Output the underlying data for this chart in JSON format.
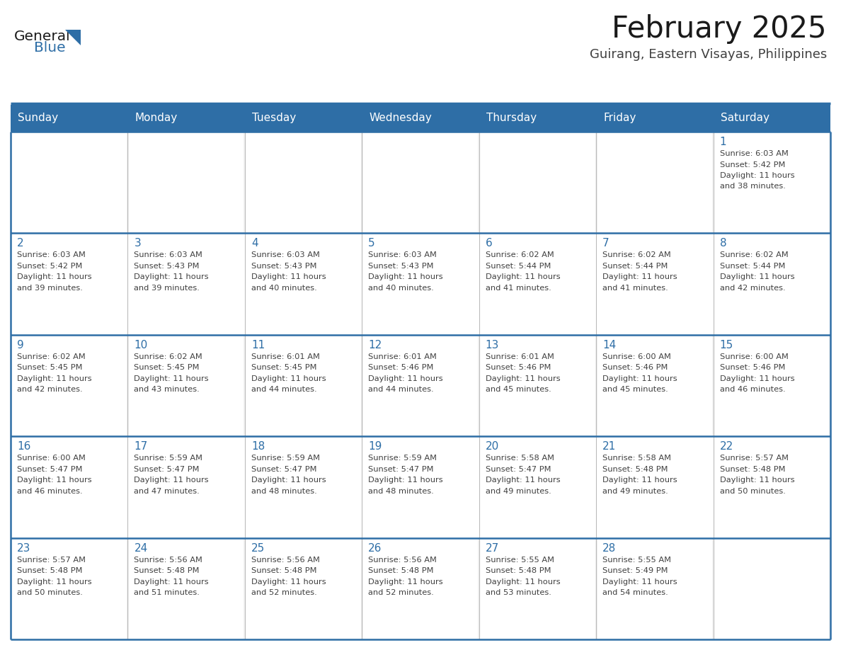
{
  "title": "February 2025",
  "subtitle": "Guirang, Eastern Visayas, Philippines",
  "header_bg": "#2E6EA6",
  "header_text": "#FFFFFF",
  "row_bg_odd": "#F2F2F2",
  "row_bg_even": "#FFFFFF",
  "day_text_color": "#2E6EA6",
  "content_text_color": "#404040",
  "grid_line_color": "#2E6EA6",
  "days_of_week": [
    "Sunday",
    "Monday",
    "Tuesday",
    "Wednesday",
    "Thursday",
    "Friday",
    "Saturday"
  ],
  "calendar_data": [
    [
      null,
      null,
      null,
      null,
      null,
      null,
      {
        "day": 1,
        "sunrise": "6:03 AM",
        "sunset": "5:42 PM",
        "daylight": "11 hours and 38 minutes."
      }
    ],
    [
      {
        "day": 2,
        "sunrise": "6:03 AM",
        "sunset": "5:42 PM",
        "daylight": "11 hours and 39 minutes."
      },
      {
        "day": 3,
        "sunrise": "6:03 AM",
        "sunset": "5:43 PM",
        "daylight": "11 hours and 39 minutes."
      },
      {
        "day": 4,
        "sunrise": "6:03 AM",
        "sunset": "5:43 PM",
        "daylight": "11 hours and 40 minutes."
      },
      {
        "day": 5,
        "sunrise": "6:03 AM",
        "sunset": "5:43 PM",
        "daylight": "11 hours and 40 minutes."
      },
      {
        "day": 6,
        "sunrise": "6:02 AM",
        "sunset": "5:44 PM",
        "daylight": "11 hours and 41 minutes."
      },
      {
        "day": 7,
        "sunrise": "6:02 AM",
        "sunset": "5:44 PM",
        "daylight": "11 hours and 41 minutes."
      },
      {
        "day": 8,
        "sunrise": "6:02 AM",
        "sunset": "5:44 PM",
        "daylight": "11 hours and 42 minutes."
      }
    ],
    [
      {
        "day": 9,
        "sunrise": "6:02 AM",
        "sunset": "5:45 PM",
        "daylight": "11 hours and 42 minutes."
      },
      {
        "day": 10,
        "sunrise": "6:02 AM",
        "sunset": "5:45 PM",
        "daylight": "11 hours and 43 minutes."
      },
      {
        "day": 11,
        "sunrise": "6:01 AM",
        "sunset": "5:45 PM",
        "daylight": "11 hours and 44 minutes."
      },
      {
        "day": 12,
        "sunrise": "6:01 AM",
        "sunset": "5:46 PM",
        "daylight": "11 hours and 44 minutes."
      },
      {
        "day": 13,
        "sunrise": "6:01 AM",
        "sunset": "5:46 PM",
        "daylight": "11 hours and 45 minutes."
      },
      {
        "day": 14,
        "sunrise": "6:00 AM",
        "sunset": "5:46 PM",
        "daylight": "11 hours and 45 minutes."
      },
      {
        "day": 15,
        "sunrise": "6:00 AM",
        "sunset": "5:46 PM",
        "daylight": "11 hours and 46 minutes."
      }
    ],
    [
      {
        "day": 16,
        "sunrise": "6:00 AM",
        "sunset": "5:47 PM",
        "daylight": "11 hours and 46 minutes."
      },
      {
        "day": 17,
        "sunrise": "5:59 AM",
        "sunset": "5:47 PM",
        "daylight": "11 hours and 47 minutes."
      },
      {
        "day": 18,
        "sunrise": "5:59 AM",
        "sunset": "5:47 PM",
        "daylight": "11 hours and 48 minutes."
      },
      {
        "day": 19,
        "sunrise": "5:59 AM",
        "sunset": "5:47 PM",
        "daylight": "11 hours and 48 minutes."
      },
      {
        "day": 20,
        "sunrise": "5:58 AM",
        "sunset": "5:47 PM",
        "daylight": "11 hours and 49 minutes."
      },
      {
        "day": 21,
        "sunrise": "5:58 AM",
        "sunset": "5:48 PM",
        "daylight": "11 hours and 49 minutes."
      },
      {
        "day": 22,
        "sunrise": "5:57 AM",
        "sunset": "5:48 PM",
        "daylight": "11 hours and 50 minutes."
      }
    ],
    [
      {
        "day": 23,
        "sunrise": "5:57 AM",
        "sunset": "5:48 PM",
        "daylight": "11 hours and 50 minutes."
      },
      {
        "day": 24,
        "sunrise": "5:56 AM",
        "sunset": "5:48 PM",
        "daylight": "11 hours and 51 minutes."
      },
      {
        "day": 25,
        "sunrise": "5:56 AM",
        "sunset": "5:48 PM",
        "daylight": "11 hours and 52 minutes."
      },
      {
        "day": 26,
        "sunrise": "5:56 AM",
        "sunset": "5:48 PM",
        "daylight": "11 hours and 52 minutes."
      },
      {
        "day": 27,
        "sunrise": "5:55 AM",
        "sunset": "5:48 PM",
        "daylight": "11 hours and 53 minutes."
      },
      {
        "day": 28,
        "sunrise": "5:55 AM",
        "sunset": "5:49 PM",
        "daylight": "11 hours and 54 minutes."
      },
      null
    ]
  ]
}
